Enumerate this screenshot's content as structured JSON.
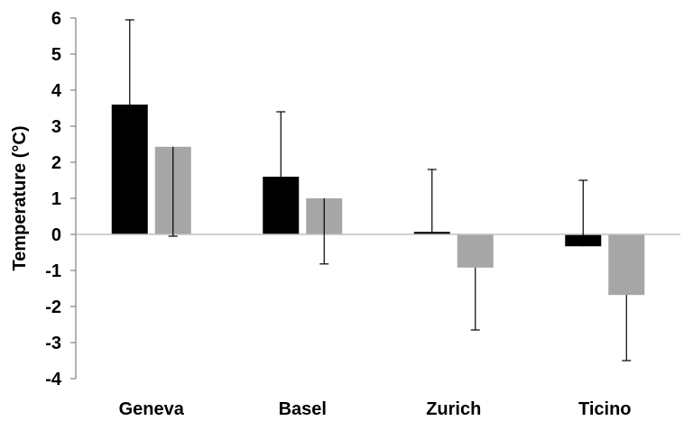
{
  "chart_data": {
    "type": "bar",
    "title": "",
    "xlabel": "",
    "ylabel": "Temperature (°C)",
    "ylim": [
      -4,
      6
    ],
    "yticks": [
      6,
      5,
      4,
      3,
      2,
      1,
      0,
      -1,
      -2,
      -3,
      -4
    ],
    "grid": false,
    "legend": "none",
    "categories": [
      "Geneva",
      "Basel",
      "Zurich",
      "Ticino"
    ],
    "series": [
      {
        "color": "#000000",
        "values": [
          3.6,
          1.6,
          0.07,
          -0.33
        ],
        "error_plus": [
          2.35,
          1.8,
          1.73,
          1.83
        ]
      },
      {
        "color": "#a6a6a6",
        "values": [
          2.43,
          1.0,
          -0.92,
          -1.68
        ],
        "error_minus": [
          2.48,
          1.82,
          1.73,
          1.82
        ]
      }
    ],
    "colors": {
      "axis": "#808080",
      "error_bar": "#000000"
    }
  }
}
